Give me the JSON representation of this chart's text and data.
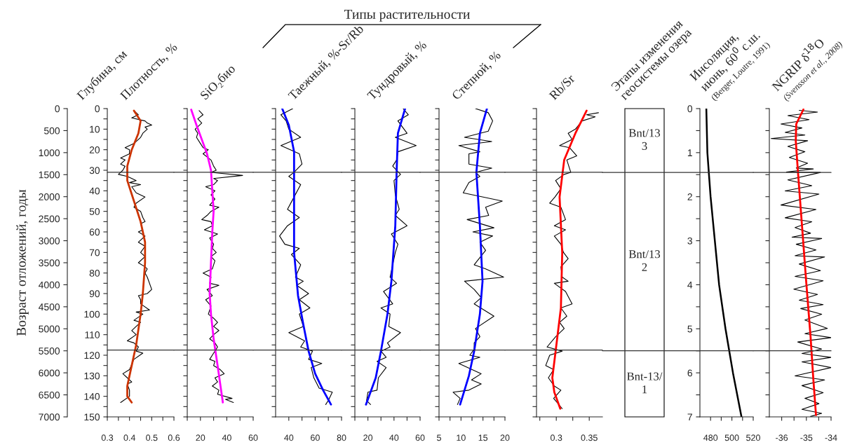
{
  "chart_data": [
    {
      "type": "line",
      "title": "Плотность, %",
      "ylabel": "Глубина, см",
      "y2label": "Возраст отложений, годы",
      "xlim": [
        0.3,
        0.6
      ],
      "xticks": [
        0.3,
        {
          "value": 0.35,
          "label": null
        },
        0.4,
        {
          "value": 0.45,
          "label": null
        },
        0.5,
        {
          "value": 0.55,
          "label": null
        },
        0.6
      ],
      "ylim": [
        150,
        0
      ],
      "yticks": [
        0,
        {
          "value": 5,
          "label": null
        },
        10,
        {
          "value": 15,
          "label": null
        },
        20,
        {
          "value": 25,
          "label": null
        },
        30,
        {
          "value": 35,
          "label": null
        },
        40,
        {
          "value": 45,
          "label": null
        },
        50,
        {
          "value": 55,
          "label": null
        },
        60,
        {
          "value": 65,
          "label": null
        },
        70,
        {
          "value": 75,
          "label": null
        },
        80,
        {
          "value": 85,
          "label": null
        },
        90,
        {
          "value": 95,
          "label": null
        },
        100,
        {
          "value": 105,
          "label": null
        },
        110,
        {
          "value": 115,
          "label": null
        },
        120,
        {
          "value": 125,
          "label": null
        },
        130,
        {
          "value": 135,
          "label": null
        },
        140,
        {
          "value": 145,
          "label": null
        },
        150
      ],
      "y2lim": [
        7000,
        0
      ],
      "y2ticks": [
        0,
        500,
        1000,
        1500,
        2000,
        2500,
        3000,
        3500,
        4000,
        4500,
        5000,
        5500,
        6000,
        6500,
        7000
      ],
      "ref_lines": [
        {
          "axis": "y",
          "value": 31
        },
        {
          "axis": "y",
          "value": 117.5
        }
      ],
      "series": [
        {
          "color": "#000000",
          "x": [
            0.42,
            0.44,
            0.41,
            0.47,
            0.48,
            0.5,
            0.47,
            0.48,
            0.46,
            0.45,
            0.42,
            0.4,
            0.38,
            0.4,
            0.4,
            0.36,
            0.38,
            0.36,
            0.38,
            0.37,
            0.35,
            0.39,
            0.43,
            0.4,
            0.45,
            0.41,
            0.43,
            0.47,
            0.43,
            0.42,
            0.45,
            0.46,
            0.47,
            0.45,
            0.46,
            0.44,
            0.47,
            0.44,
            0.47,
            0.45,
            0.47,
            0.44,
            0.47,
            0.48,
            0.47,
            0.48,
            0.5,
            0.48,
            0.44,
            0.45,
            0.45,
            0.49,
            0.43,
            0.46,
            0.42,
            0.45,
            0.43,
            0.41,
            0.43,
            0.39,
            0.42,
            0.44,
            0.43,
            0.46,
            0.42,
            0.4,
            0.37,
            0.39,
            0.41,
            0.39,
            0.4,
            0.4,
            0.36
          ],
          "values": [
            1,
            3,
            4.5,
            6,
            7,
            8,
            9,
            10,
            12,
            14,
            17,
            18,
            19,
            20,
            22,
            24,
            25,
            27,
            28,
            30,
            32,
            33,
            35,
            36,
            37,
            38,
            41,
            43,
            46,
            48,
            50,
            53,
            55,
            56,
            59,
            60,
            62,
            65,
            67,
            70,
            72,
            75,
            77,
            78,
            80,
            82,
            88,
            90,
            91,
            93,
            95,
            98,
            99,
            100,
            103,
            104,
            106,
            108,
            110,
            113,
            114,
            116,
            118,
            119,
            122,
            127,
            129,
            131,
            133,
            134,
            137,
            140,
            143
          ]
        },
        {
          "color": "#cc3300",
          "x": [
            0.42,
            0.45,
            0.44,
            0.41,
            0.39,
            0.39,
            0.42,
            0.45,
            0.47,
            0.47,
            0.46,
            0.45,
            0.43,
            0.41,
            0.39,
            0.39,
            0.41
          ],
          "values": [
            1,
            6,
            12,
            20,
            28,
            35,
            45,
            55,
            65,
            75,
            90,
            100,
            115,
            125,
            135,
            140,
            143
          ]
        }
      ]
    },
    {
      "type": "line",
      "title": "SiO₂био",
      "xlim": [
        10,
        60
      ],
      "xticks": [
        {
          "value": 10,
          "label": null
        },
        20,
        {
          "value": 30,
          "label": null
        },
        40,
        {
          "value": 50,
          "label": null
        },
        60
      ],
      "ylim": [
        150,
        0
      ],
      "tick_labels": "x",
      "yticks": [
        0,
        {
          "value": 5,
          "label": null
        },
        10,
        {
          "value": 15,
          "label": null
        },
        20,
        {
          "value": 25,
          "label": null
        },
        30,
        {
          "value": 35,
          "label": null
        },
        40,
        {
          "value": 45,
          "label": null
        },
        50,
        {
          "value": 55,
          "label": null
        },
        60,
        {
          "value": 65,
          "label": null
        },
        70,
        {
          "value": 75,
          "label": null
        },
        80,
        {
          "value": 85,
          "label": null
        },
        90,
        {
          "value": 95,
          "label": null
        },
        100,
        {
          "value": 105,
          "label": null
        },
        110,
        {
          "value": 115,
          "label": null
        },
        120,
        {
          "value": 125,
          "label": null
        },
        130,
        {
          "value": 135,
          "label": null
        },
        140,
        {
          "value": 145,
          "label": null
        },
        150
      ],
      "ref_lines": [
        {
          "axis": "y",
          "value": 31
        },
        {
          "axis": "y",
          "value": 117.5
        }
      ],
      "series": [
        {
          "color": "#000000",
          "x": [
            19,
            22,
            18,
            21,
            16,
            18,
            17,
            20,
            22,
            26,
            22,
            28,
            30,
            32,
            28,
            52,
            30,
            33,
            30,
            24,
            31,
            28,
            31,
            27,
            34,
            28,
            25,
            21,
            28,
            29,
            23,
            33,
            27,
            30,
            29,
            32,
            28,
            31,
            29,
            22,
            28,
            27,
            34,
            25,
            29,
            24,
            28,
            26,
            30,
            33,
            30,
            34,
            30,
            27,
            31,
            33,
            30,
            27,
            31,
            30,
            35,
            38,
            31,
            33,
            29,
            34,
            33,
            44,
            39,
            45
          ],
          "values": [
            1,
            3,
            5,
            7,
            10,
            12,
            14,
            17,
            19,
            20,
            22,
            25,
            28,
            30,
            31,
            32.5,
            34,
            35,
            37,
            38,
            40,
            42,
            44,
            47,
            48,
            50,
            52,
            54,
            55,
            57,
            59,
            61,
            63,
            66,
            68,
            70,
            72,
            74,
            78,
            80,
            82,
            85,
            86,
            88,
            91,
            93,
            96,
            100,
            102,
            104,
            106,
            108,
            110,
            112,
            114,
            116,
            119,
            122,
            123,
            125,
            127,
            129,
            131,
            133,
            135,
            137,
            139,
            141,
            141.5,
            143
          ]
        },
        {
          "color": "#ff00ff",
          "x": [
            13,
            17,
            21,
            25,
            28,
            29,
            30,
            29,
            28,
            27,
            28,
            30,
            33,
            37
          ],
          "values": [
            0.5,
            8,
            15,
            22,
            30,
            40,
            50,
            60,
            75,
            90,
            100,
            112,
            125,
            143
          ]
        }
      ]
    },
    {
      "type": "line",
      "title": "Таежный, %-Sr/Rb",
      "xlim": [
        30,
        80
      ],
      "xticks": [
        40,
        {
          "value": 50,
          "label": null
        },
        60,
        {
          "value": 70,
          "label": null
        },
        80
      ],
      "ylim": [
        150,
        0
      ],
      "tick_labels": "x",
      "yticks": [
        0,
        {
          "value": 5,
          "label": null
        },
        10,
        {
          "value": 15,
          "label": null
        },
        20,
        {
          "value": 25,
          "label": null
        },
        30,
        {
          "value": 35,
          "label": null
        },
        40,
        {
          "value": 45,
          "label": null
        },
        50,
        {
          "value": 55,
          "label": null
        },
        60,
        {
          "value": 65,
          "label": null
        },
        70,
        {
          "value": 75,
          "label": null
        },
        80,
        {
          "value": 85,
          "label": null
        },
        90,
        {
          "value": 95,
          "label": null
        },
        100,
        {
          "value": 105,
          "label": null
        },
        110,
        {
          "value": 115,
          "label": null
        },
        120,
        {
          "value": 125,
          "label": null
        },
        130,
        {
          "value": 135,
          "label": null
        },
        140,
        {
          "value": 145,
          "label": null
        },
        150
      ],
      "ref_lines": [
        {
          "axis": "y",
          "value": 31
        },
        {
          "axis": "y",
          "value": 117.5
        }
      ],
      "series": [
        {
          "color": "#000000",
          "x": [
            43,
            34,
            38,
            40,
            49,
            34,
            48,
            50,
            44,
            40,
            49,
            44,
            39,
            48,
            39,
            33,
            37,
            48,
            42,
            49,
            45,
            51,
            46,
            55,
            48,
            56,
            48,
            51,
            40,
            52,
            49,
            58,
            55,
            65,
            57,
            59,
            63,
            73,
            70,
            68
          ],
          "values": [
            0,
            3,
            6,
            10,
            14,
            18,
            22,
            27,
            31,
            33,
            37,
            43,
            49,
            53,
            57,
            62,
            66,
            68,
            71,
            76,
            82,
            84,
            86,
            90,
            93,
            97,
            100,
            106,
            109,
            113,
            116,
            118,
            122,
            124,
            126,
            131,
            136,
            138,
            142,
            144
          ]
        },
        {
          "color": "#0000ff",
          "x": [
            35,
            40,
            44,
            44,
            44,
            44,
            47,
            51,
            55,
            60,
            66,
            72
          ],
          "values": [
            0,
            8,
            21,
            31,
            57,
            70,
            91,
            105,
            118,
            129,
            137,
            144
          ]
        }
      ]
    },
    {
      "type": "line",
      "title": "Тундровый, %",
      "annotations": [
        "Типы растительности"
      ],
      "xlim": [
        10,
        60
      ],
      "xticks": [
        {
          "value": 10,
          "label": null
        },
        20,
        {
          "value": 30,
          "label": null
        },
        40,
        {
          "value": 50,
          "label": null
        },
        60
      ],
      "ylim": [
        150,
        0
      ],
      "tick_labels": "x",
      "yticks": [
        0,
        {
          "value": 5,
          "label": null
        },
        10,
        {
          "value": 15,
          "label": null
        },
        20,
        {
          "value": 25,
          "label": null
        },
        30,
        {
          "value": 35,
          "label": null
        },
        40,
        {
          "value": 45,
          "label": null
        },
        50,
        {
          "value": 55,
          "label": null
        },
        60,
        {
          "value": 65,
          "label": null
        },
        70,
        {
          "value": 75,
          "label": null
        },
        80,
        {
          "value": 85,
          "label": null
        },
        90,
        {
          "value": 95,
          "label": null
        },
        100,
        {
          "value": 105,
          "label": null
        },
        110,
        {
          "value": 115,
          "label": null
        },
        120,
        {
          "value": 125,
          "label": null
        },
        130,
        {
          "value": 135,
          "label": null
        },
        140,
        {
          "value": 145,
          "label": null
        },
        150
      ],
      "ref_lines": [
        {
          "axis": "y",
          "value": 31
        },
        {
          "axis": "y",
          "value": 117.5
        }
      ],
      "series": [
        {
          "color": "#000000",
          "x": [
            47,
            51,
            43,
            50,
            41,
            57,
            43,
            42,
            39,
            45,
            40,
            41,
            44,
            41,
            50,
            38,
            43,
            41,
            37,
            42,
            32,
            39,
            30,
            37,
            36,
            45,
            35,
            37,
            30,
            34,
            27,
            34,
            28,
            27,
            20,
            19,
            22
          ],
          "values": [
            0,
            3,
            6,
            12,
            14,
            18,
            21,
            25,
            28,
            32,
            35,
            42,
            49,
            52,
            57,
            61,
            66,
            70,
            82,
            85,
            89,
            95,
            97,
            100,
            106,
            109,
            114,
            116,
            118,
            121,
            123,
            126,
            131,
            137,
            138,
            142,
            144
          ]
        },
        {
          "color": "#0000ff",
          "x": [
            48.5,
            43,
            42,
            41,
            38,
            35,
            30,
            26,
            18.5
          ],
          "values": [
            0,
            12,
            31,
            57,
            84,
            100,
            118,
            131,
            144
          ]
        }
      ]
    },
    {
      "type": "line",
      "title": "Степной, %",
      "xlim": [
        5,
        20
      ],
      "xticks": [
        5,
        {
          "value": 7.5,
          "label": null
        },
        10,
        {
          "value": 12.5,
          "label": null
        },
        15,
        {
          "value": 17.5,
          "label": null
        },
        20
      ],
      "ylim": [
        150,
        0
      ],
      "tick_labels": "x",
      "yticks": [
        0,
        {
          "value": 5,
          "label": null
        },
        10,
        {
          "value": 15,
          "label": null
        },
        20,
        {
          "value": 25,
          "label": null
        },
        30,
        {
          "value": 35,
          "label": null
        },
        40,
        {
          "value": 45,
          "label": null
        },
        50,
        {
          "value": 55,
          "label": null
        },
        60,
        {
          "value": 65,
          "label": null
        },
        70,
        {
          "value": 75,
          "label": null
        },
        80,
        {
          "value": 85,
          "label": null
        },
        90,
        {
          "value": 95,
          "label": null
        },
        100,
        {
          "value": 105,
          "label": null
        },
        110,
        {
          "value": 115,
          "label": null
        },
        120,
        {
          "value": 125,
          "label": null
        },
        130,
        {
          "value": 135,
          "label": null
        },
        140,
        {
          "value": 145,
          "label": null
        },
        150
      ],
      "ref_lines": [
        {
          "axis": "y",
          "value": 31
        },
        {
          "axis": "y",
          "value": 117.5
        }
      ],
      "series": [
        {
          "color": "#000000",
          "x": [
            13.3,
            16.2,
            17.2,
            16.2,
            10.8,
            17,
            9.5,
            14.3,
            11.8,
            11.8,
            17,
            13.3,
            14.3,
            11.8,
            10.5,
            19.4,
            15.6,
            16.3,
            11.4,
            17.5,
            12.7,
            17.2,
            14.3,
            15.6,
            13,
            15.6,
            19.7,
            10.8,
            13,
            14.6,
            13,
            17.5,
            13.3,
            14.3,
            13,
            13,
            12,
            14.3,
            9.5,
            14.6,
            12.4,
            14.6,
            11.8,
            8.2,
            9.8,
            9.2
          ],
          "values": [
            0,
            2,
            6,
            11,
            14,
            16,
            18,
            21,
            22,
            27,
            29,
            31,
            33,
            36,
            41,
            45,
            48,
            52,
            54,
            58,
            60,
            62,
            65,
            69,
            76,
            78,
            82,
            84,
            88,
            92,
            95,
            101,
            107,
            111,
            114,
            117,
            120,
            121,
            124,
            129,
            132,
            134,
            137,
            138,
            141,
            144
          ]
        },
        {
          "color": "#0000ff",
          "x": [
            15.9,
            14.3,
            13.5,
            14.3,
            14.9,
            14.3,
            13,
            11.8,
            9.8
          ],
          "values": [
            0,
            12,
            31,
            57,
            84,
            100,
            118,
            130,
            144
          ]
        }
      ]
    },
    {
      "type": "line",
      "title": "Rb/Sr",
      "xlim": [
        0.27,
        0.37
      ],
      "xticks": [
        {
          "value": 0.275,
          "label": null
        },
        0.3,
        {
          "value": 0.325,
          "label": null
        },
        0.35
      ],
      "ylim": [
        150,
        0
      ],
      "tick_labels": "x",
      "yticks": [
        0,
        {
          "value": 5,
          "label": null
        },
        10,
        {
          "value": 15,
          "label": null
        },
        20,
        {
          "value": 25,
          "label": null
        },
        30,
        {
          "value": 35,
          "label": null
        },
        40,
        {
          "value": 45,
          "label": null
        },
        50,
        {
          "value": 55,
          "label": null
        },
        60,
        {
          "value": 65,
          "label": null
        },
        70,
        {
          "value": 75,
          "label": null
        },
        80,
        {
          "value": 85,
          "label": null
        },
        90,
        {
          "value": 95,
          "label": null
        },
        100,
        {
          "value": 105,
          "label": null
        },
        110,
        {
          "value": 115,
          "label": null
        },
        120,
        {
          "value": 125,
          "label": null
        },
        130,
        {
          "value": 135,
          "label": null
        },
        140,
        {
          "value": 145,
          "label": null
        },
        150
      ],
      "ref_lines": [
        {
          "axis": "y",
          "value": 31
        },
        {
          "axis": "y",
          "value": 117.5
        }
      ],
      "series": [
        {
          "color": "#000000",
          "x": [
            0.364,
            0.346,
            0.359,
            0.339,
            0.329,
            0.318,
            0.324,
            0.305,
            0.32,
            0.331,
            0.316,
            0.32,
            0.322,
            0.312,
            0.299,
            0.307,
            0.298,
            0.29,
            0.307,
            0.314,
            0.297,
            0.314,
            0.297,
            0.307,
            0.311,
            0.318,
            0.307,
            0.309,
            0.318,
            0.297,
            0.314,
            0.324,
            0.307,
            0.316,
            0.305,
            0.312,
            0.299,
            0.286,
            0.309,
            0.29,
            0.284,
            0.296,
            0.288,
            0.297,
            0.307,
            0.296,
            0.309
          ],
          "values": [
            2,
            3,
            4,
            6,
            10,
            12,
            15,
            18,
            19,
            23,
            25,
            29,
            31,
            32,
            35,
            39,
            43,
            46,
            48,
            54,
            57,
            59,
            62,
            66,
            70,
            73,
            77,
            82,
            84,
            85,
            89,
            95,
            97,
            101,
            104,
            107,
            111,
            116,
            118,
            120,
            125,
            127,
            131,
            135,
            137,
            141,
            146
          ]
        },
        {
          "color": "#ff0000",
          "x": [
            0.346,
            0.329,
            0.312,
            0.305,
            0.309,
            0.307,
            0.299,
            0.294,
            0.297,
            0.306
          ],
          "values": [
            1,
            12,
            25,
            43,
            70,
            97,
            118,
            131,
            138,
            146
          ]
        }
      ]
    },
    {
      "type": "other",
      "title": "Этапы изменения\nгеосистемы озера",
      "annotations": [
        "Bnt/13\n3",
        "Bnt/13\n2",
        "Bnt-13/\n1"
      ]
    },
    {
      "type": "line",
      "title": "Инсоляция,\nиюнь, 60$^{0}$ с.ш.",
      "subtitle": "(Berger, Loutre, 1991)",
      "xlim": [
        470,
        520
      ],
      "xticks": [
        480,
        {
          "value": 490,
          "label": null
        },
        500,
        {
          "value": 510,
          "label": null
        },
        520
      ],
      "ylim": [
        7,
        0
      ],
      "yticks": [
        0,
        {
          "value": 0.5,
          "label": null
        },
        1,
        {
          "value": 1.5,
          "label": null
        },
        2,
        {
          "value": 2.5,
          "label": null
        },
        3,
        {
          "value": 3.5,
          "label": null
        },
        4,
        {
          "value": 4.5,
          "label": null
        },
        5,
        {
          "value": 5.5,
          "label": null
        },
        6,
        {
          "value": 6.5,
          "label": null
        },
        7
      ],
      "ref_lines": [
        {
          "axis": "y",
          "value": 1.45
        },
        {
          "axis": "y",
          "value": 5.5
        }
      ],
      "series": [
        {
          "color": "#000000",
          "x": [
            476,
            477,
            480,
            484,
            488,
            494,
            501,
            509
          ],
          "values": [
            0,
            1,
            2,
            3,
            4,
            5,
            6,
            7
          ]
        }
      ]
    },
    {
      "type": "line",
      "title": "NGRIP δ$^{18}$O",
      "subtitle": "(Svensson et al., 2008)",
      "xlim": [
        -36.5,
        -34
      ],
      "xticks": [
        -36,
        {
          "value": -35.5,
          "label": null
        },
        -35,
        {
          "value": -34.5,
          "label": null
        },
        -34
      ],
      "ylim": [
        7,
        0
      ],
      "tick_labels": "x",
      "yticks": [
        0,
        {
          "value": 0.5,
          "label": null
        },
        1,
        {
          "value": 1.5,
          "label": null
        },
        2,
        {
          "value": 2.5,
          "label": null
        },
        3,
        {
          "value": 3.5,
          "label": null
        },
        4,
        {
          "value": 4.5,
          "label": null
        },
        5,
        {
          "value": 5.5,
          "label": null
        },
        6,
        {
          "value": 6.5,
          "label": null
        },
        7
      ],
      "ref_lines": [
        {
          "axis": "y",
          "value": 1.45
        },
        {
          "axis": "y",
          "value": 5.5
        }
      ],
      "series": [
        {
          "color": "#000000",
          "x": [
            -35.29,
            -34.55,
            -35.75,
            -34.89,
            -36.03,
            -35.18,
            -35.86,
            -35.06,
            -36.43,
            -34.95,
            -35.75,
            -35.06,
            -35.69,
            -34.95,
            -35.41,
            -34.72,
            -35.81,
            -34.43,
            -35.75,
            -34.78,
            -35.86,
            -34.49,
            -36.03,
            -34.61,
            -35.86,
            -34.78,
            -35.46,
            -34.83,
            -35.58,
            -34.38,
            -35.41,
            -34.61,
            -35.46,
            -34.26,
            -35.29,
            -34.43,
            -35.46,
            -34.32,
            -35.51,
            -34.55,
            -35.29,
            -34.32,
            -35.23,
            -34.38,
            -35.06,
            -34.15,
            -35.06,
            -34.0,
            -35.35,
            -34.38,
            -35.18,
            -34.0,
            -35.18,
            -34.0,
            -35.46,
            -34.26,
            -35.18,
            -34.32,
            -35.06,
            -34.49,
            -35.18,
            -34.38,
            -34.83
          ],
          "values": [
            0.04,
            0.08,
            0.16,
            0.25,
            0.35,
            0.44,
            0.54,
            0.6,
            0.68,
            0.73,
            0.86,
            0.98,
            1.11,
            1.24,
            1.35,
            1.37,
            1.44,
            1.45,
            1.62,
            1.75,
            1.87,
            1.94,
            2.19,
            2.29,
            2.48,
            2.57,
            2.7,
            2.83,
            2.92,
            2.95,
            3.08,
            3.21,
            3.34,
            3.37,
            3.53,
            3.68,
            3.81,
            3.91,
            4.1,
            4.22,
            4.35,
            4.45,
            4.54,
            4.67,
            4.8,
            4.99,
            5.11,
            5.2,
            5.3,
            5.46,
            5.56,
            5.65,
            5.75,
            5.88,
            6.07,
            6.16,
            6.29,
            6.45,
            6.58,
            6.7,
            6.83,
            6.92,
            6.99
          ]
        },
        {
          "color": "#ff0000",
          "x": [
            -35.12,
            -35.41,
            -35.43,
            -35.35,
            -35.18,
            -35.01,
            -34.83,
            -34.72,
            -34.61
          ],
          "values": [
            0.02,
            0.35,
            0.73,
            1.37,
            2.64,
            3.91,
            5.18,
            6.13,
            6.96
          ]
        }
      ]
    }
  ]
}
